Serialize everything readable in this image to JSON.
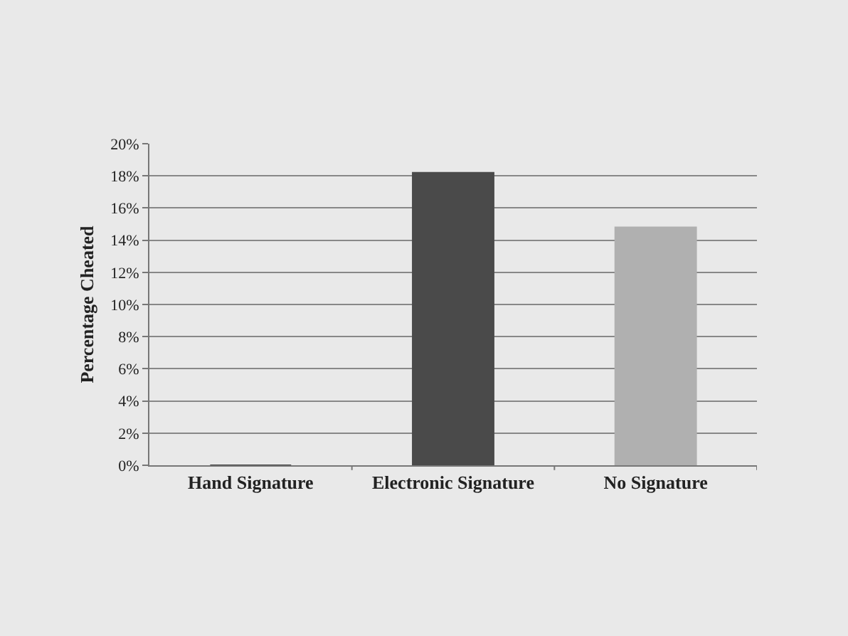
{
  "chart_data": {
    "type": "bar",
    "ylabel": "Percentage Cheated",
    "categories": [
      "Hand Signature",
      "Electronic Signature",
      "No Signature"
    ],
    "values": [
      0,
      18.2,
      14.8
    ],
    "colors": [
      "#3a3a3a",
      "#4a4a4a",
      "#b0b0b0"
    ],
    "ylim": [
      0,
      20
    ],
    "yticks": [
      {
        "value": 0,
        "label": "0%"
      },
      {
        "value": 2,
        "label": "2%"
      },
      {
        "value": 4,
        "label": "4%"
      },
      {
        "value": 6,
        "label": "6%"
      },
      {
        "value": 8,
        "label": "8%"
      },
      {
        "value": 10,
        "label": "10%"
      },
      {
        "value": 12,
        "label": "12%"
      },
      {
        "value": 14,
        "label": "14%"
      },
      {
        "value": 16,
        "label": "16%"
      },
      {
        "value": 18,
        "label": "18%"
      },
      {
        "value": 20,
        "label": "20%"
      }
    ],
    "grid": "y"
  }
}
